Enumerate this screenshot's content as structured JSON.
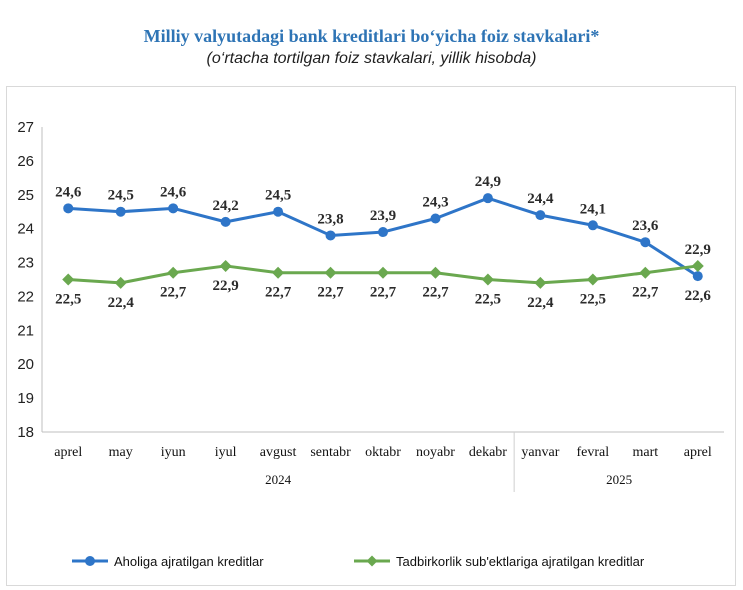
{
  "chart_data": {
    "type": "line",
    "title": "Milliy valyutadagi bank kreditlari bo‘yicha foiz stavkalari*",
    "subtitle": "(o‘rtacha tortilgan foiz stavkalari, yillik hisobda)",
    "categories": [
      "aprel",
      "may",
      "iyun",
      "iyul",
      "avgust",
      "sentabr",
      "oktabr",
      "noyabr",
      "dekabr",
      "yanvar",
      "fevral",
      "mart",
      "aprel"
    ],
    "year_groups": [
      {
        "label": "2024",
        "count": 9
      },
      {
        "label": "2025",
        "count": 4
      }
    ],
    "ylim": [
      18,
      27
    ],
    "yticks": [
      18,
      19,
      20,
      21,
      22,
      23,
      24,
      25,
      26,
      27
    ],
    "grid": false,
    "legend_position": "bottom",
    "series": [
      {
        "name": "Aholiga ajratilgan kreditlar",
        "color": "#2e75c8",
        "marker": "circle",
        "values": [
          24.6,
          24.5,
          24.6,
          24.2,
          24.5,
          23.8,
          23.9,
          24.3,
          24.9,
          24.4,
          24.1,
          23.6,
          22.6
        ],
        "labels": [
          "24,6",
          "24,5",
          "24,6",
          "24,2",
          "24,5",
          "23,8",
          "23,9",
          "24,3",
          "24,9",
          "24,4",
          "24,1",
          "23,6",
          "22,6"
        ],
        "label_position": "above"
      },
      {
        "name": "Tadbirkorlik sub'ektlariga ajratilgan kreditlar",
        "color": "#6aa84f",
        "marker": "diamond",
        "values": [
          22.5,
          22.4,
          22.7,
          22.9,
          22.7,
          22.7,
          22.7,
          22.7,
          22.5,
          22.4,
          22.5,
          22.7,
          22.9
        ],
        "labels": [
          "22,5",
          "22,4",
          "22,7",
          "22,9",
          "22,7",
          "22,7",
          "22,7",
          "22,7",
          "22,5",
          "22,4",
          "22,5",
          "22,7",
          "22,9"
        ],
        "label_position": "below"
      }
    ]
  }
}
